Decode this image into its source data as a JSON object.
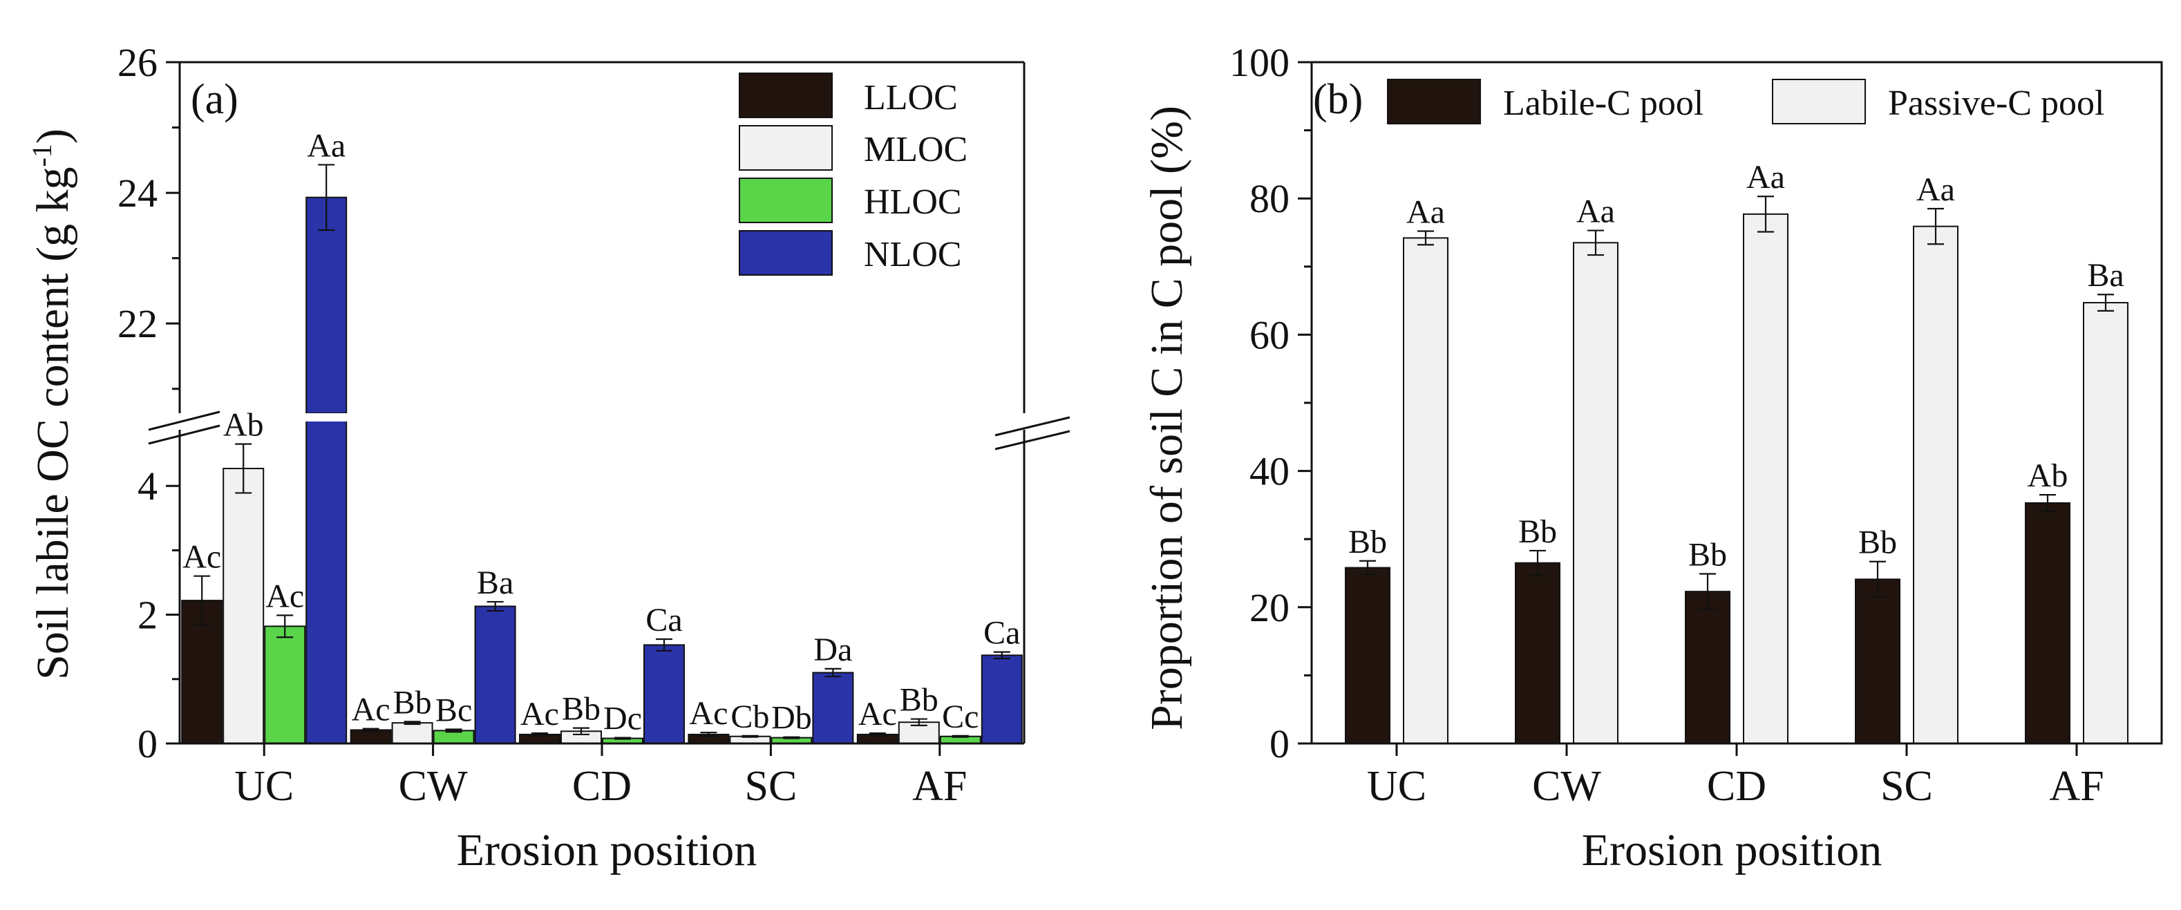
{
  "colors": {
    "LLOC": "#21140e",
    "MLOC": "#f1f1f1",
    "HLOC": "#5ad54a",
    "NLOC": "#2a33a8",
    "Labile-C pool": "#21140e",
    "Passive-C pool": "#f1f1f1"
  },
  "chart_data": [
    {
      "type": "bar",
      "panel_label": "(a)",
      "xlabel": "Erosion position",
      "ylabel_main": "Soil labile OC content (g kg",
      "ylabel_sup": "-1",
      "ylabel_end": ")",
      "categories": [
        "UC",
        "CW",
        "CD",
        "SC",
        "AF"
      ],
      "axis_break": {
        "lower_range": [
          0,
          5
        ],
        "upper_range": [
          20.5,
          26
        ]
      },
      "yticks_lower": [
        "0",
        "2",
        "4"
      ],
      "yticks_upper": [
        "22",
        "24",
        "26"
      ],
      "legend_position": "top-right",
      "series": [
        {
          "name": "LLOC",
          "values": [
            2.22,
            0.21,
            0.14,
            0.14,
            0.14
          ],
          "errors": [
            0.38,
            0.02,
            0.02,
            0.03,
            0.02
          ],
          "labels": [
            "Ac",
            "Ac",
            "Ac",
            "Ac",
            "Ac"
          ]
        },
        {
          "name": "MLOC",
          "values": [
            4.27,
            0.32,
            0.19,
            0.11,
            0.33
          ],
          "errors": [
            0.38,
            0.02,
            0.05,
            0.01,
            0.05
          ],
          "labels": [
            "Ab",
            "Bb",
            "Bb",
            "Cb",
            "Bb"
          ]
        },
        {
          "name": "HLOC",
          "values": [
            1.82,
            0.2,
            0.08,
            0.09,
            0.11
          ],
          "errors": [
            0.17,
            0.02,
            0.01,
            0.01,
            0.01
          ],
          "labels": [
            "Ac",
            "Bc",
            "Dc",
            "Db",
            "Cc"
          ]
        },
        {
          "name": "NLOC",
          "values": [
            23.93,
            2.13,
            1.53,
            1.1,
            1.37
          ],
          "errors": [
            0.5,
            0.07,
            0.09,
            0.06,
            0.05
          ],
          "labels": [
            "Aa",
            "Ba",
            "Ca",
            "Da",
            "Ca"
          ]
        }
      ]
    },
    {
      "type": "bar",
      "panel_label": "(b)",
      "xlabel": "Erosion position",
      "ylabel": "Proportion of soil C in C pool (%)",
      "categories": [
        "UC",
        "CW",
        "CD",
        "SC",
        "AF"
      ],
      "ylim": [
        0,
        100
      ],
      "yticks": [
        "0",
        "20",
        "40",
        "60",
        "80",
        "100"
      ],
      "legend_position": "top",
      "series": [
        {
          "name": "Labile-C pool",
          "values": [
            25.8,
            26.5,
            22.3,
            24.1,
            35.3
          ],
          "errors": [
            1.0,
            1.8,
            2.6,
            2.6,
            1.2
          ],
          "labels": [
            "Bb",
            "Bb",
            "Bb",
            "Bb",
            "Ab"
          ]
        },
        {
          "name": "Passive-C pool",
          "values": [
            74.2,
            73.5,
            77.7,
            75.9,
            64.7
          ],
          "errors": [
            1.0,
            1.8,
            2.6,
            2.6,
            1.2
          ],
          "labels": [
            "Aa",
            "Aa",
            "Aa",
            "Aa",
            "Ba"
          ]
        }
      ]
    }
  ]
}
